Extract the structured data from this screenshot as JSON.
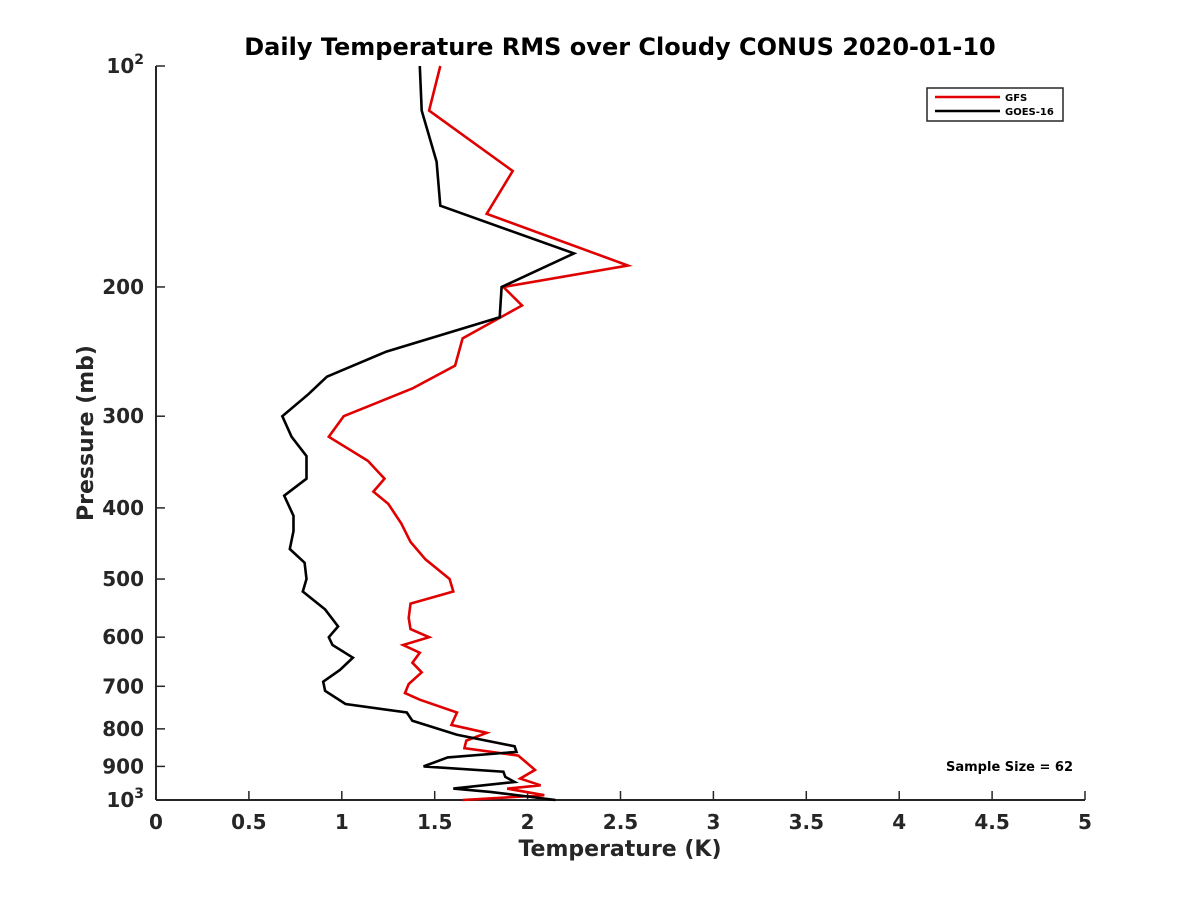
{
  "chart_data": {
    "type": "line",
    "title": "Daily Temperature RMS over Cloudy CONUS 2020-01-10",
    "xlabel": "Temperature (K)",
    "ylabel": "Pressure (mb)",
    "xlim": [
      0,
      5
    ],
    "ylim": [
      100,
      1000
    ],
    "y_scale": "log",
    "y_reversed": true,
    "xticks": [
      "0",
      "0.5",
      "1",
      "1.5",
      "2",
      "2.5",
      "3",
      "3.5",
      "4",
      "4.5",
      "5"
    ],
    "yticks": [
      {
        "value": 100,
        "label": "10",
        "sup": "2"
      },
      {
        "value": 200,
        "label": "200"
      },
      {
        "value": 300,
        "label": "300"
      },
      {
        "value": 400,
        "label": "400"
      },
      {
        "value": 500,
        "label": "500"
      },
      {
        "value": 600,
        "label": "600"
      },
      {
        "value": 700,
        "label": "700"
      },
      {
        "value": 800,
        "label": "800"
      },
      {
        "value": 900,
        "label": "900"
      },
      {
        "value": 1000,
        "label": "10",
        "sup": "3"
      }
    ],
    "grid": false,
    "legend_position": "top-right",
    "annotation": "Sample Size = 62",
    "series": [
      {
        "name": "GFS",
        "color": "#e00000",
        "x": [
          1.53,
          1.47,
          1.92,
          1.78,
          2.54,
          1.87,
          1.97,
          1.65,
          1.61,
          1.38,
          1.01,
          0.93,
          1.14,
          1.23,
          1.17,
          1.25,
          1.32,
          1.37,
          1.45,
          1.58,
          1.6,
          1.37,
          1.36,
          1.37,
          1.47,
          1.33,
          1.42,
          1.38,
          1.43,
          1.36,
          1.34,
          1.42,
          1.62,
          1.59,
          1.78,
          1.67,
          1.66,
          1.95,
          2.04,
          1.96,
          2.07,
          1.89,
          2.09,
          1.65
        ],
        "y": [
          100,
          115,
          139,
          159,
          187,
          200,
          212,
          235,
          256,
          275,
          300,
          320,
          345,
          365,
          380,
          395,
          420,
          445,
          470,
          500,
          520,
          540,
          565,
          585,
          600,
          615,
          630,
          650,
          670,
          695,
          715,
          730,
          760,
          790,
          810,
          830,
          850,
          870,
          910,
          935,
          955,
          965,
          985,
          1000
        ]
      },
      {
        "name": "GOES-16",
        "color": "#000000",
        "x": [
          1.42,
          1.43,
          1.51,
          1.53,
          2.25,
          1.86,
          1.85,
          1.24,
          0.92,
          0.82,
          0.68,
          0.73,
          0.81,
          0.81,
          0.69,
          0.74,
          0.74,
          0.72,
          0.8,
          0.81,
          0.79,
          0.91,
          0.98,
          0.93,
          0.95,
          1.06,
          0.99,
          0.9,
          0.91,
          1.02,
          1.35,
          1.38,
          1.62,
          1.93,
          1.94,
          1.57,
          1.44,
          1.87,
          1.88,
          1.93,
          1.6,
          1.8,
          2.15
        ],
        "y": [
          100,
          115,
          135,
          155,
          180,
          200,
          220,
          245,
          265,
          280,
          300,
          320,
          340,
          365,
          385,
          410,
          430,
          455,
          475,
          500,
          520,
          550,
          580,
          600,
          615,
          640,
          665,
          690,
          710,
          740,
          760,
          780,
          815,
          845,
          860,
          875,
          900,
          915,
          930,
          945,
          965,
          975,
          1000
        ]
      }
    ]
  }
}
